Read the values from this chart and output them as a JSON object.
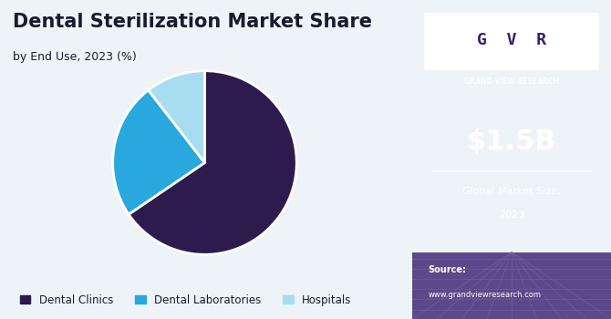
{
  "title_line1": "Dental Sterilization Market Share",
  "title_line2": "by End Use, 2023 (%)",
  "slices": [
    65.5,
    24.0,
    10.5
  ],
  "labels": [
    "Dental Clinics",
    "Dental Laboratories",
    "Hospitals"
  ],
  "colors": [
    "#2d1b4e",
    "#29a8e0",
    "#a8ddf0"
  ],
  "startangle": 90,
  "left_bg": "#eef3f8",
  "right_bg": "#3b1a6e",
  "market_size": "$1.5B",
  "market_label_line1": "Global Market Size,",
  "market_label_line2": "2023",
  "source_line1": "Source:",
  "source_line2": "www.grandviewresearch.com",
  "title_color": "#1a1a2e",
  "legend_color": "#1a1a2e",
  "right_text_color": "#ffffff",
  "gvr_label": "GRAND VIEW RESEARCH"
}
